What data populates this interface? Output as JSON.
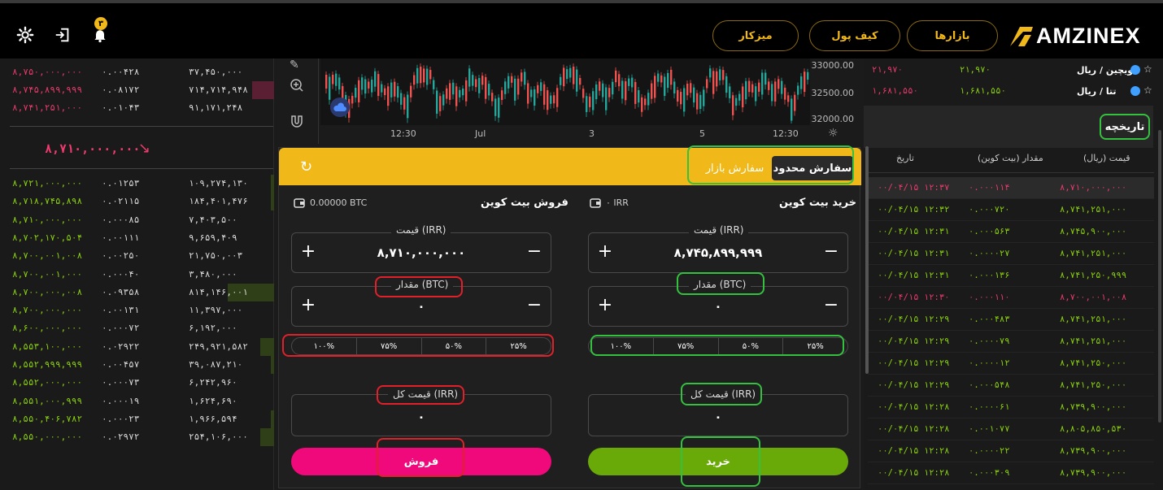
{
  "header": {
    "logo_text": "AMZINEX",
    "nav": [
      "میزکار",
      "کیف پول",
      "بازارها"
    ],
    "notification_count": "۳"
  },
  "orderbook": {
    "asks": [
      {
        "price": "۸,۷۵۰,۰۰۰,۰۰۰",
        "amount": "۰.۰۰۴۲۸",
        "total": "۳۷,۴۵۰,۰۰۰",
        "depth": 0
      },
      {
        "price": "۸,۷۴۵,۸۹۹,۹۹۹",
        "amount": "۰.۰۸۱۷۲",
        "total": "۷۱۴,۷۱۴,۹۴۸",
        "depth": 0.08
      },
      {
        "price": "۸,۷۴۱,۲۵۱,۰۰۰",
        "amount": "۰.۰۱۰۴۳",
        "total": "۹۱,۱۷۱,۲۴۸",
        "depth": 0
      }
    ],
    "mid_price": "۸,۷۱۰,۰۰۰,۰۰۰",
    "bids": [
      {
        "price": "۸,۷۲۱,۰۰۰,۰۰۰",
        "amount": "۰.۰۱۲۵۳",
        "total": "۱۰۹,۲۷۴,۱۳۰",
        "depth": 0.01
      },
      {
        "price": "۸,۷۱۸,۷۴۵,۸۹۸",
        "amount": "۰.۰۲۱۱۵",
        "total": "۱۸۴,۴۰۱,۴۷۶",
        "depth": 0.01
      },
      {
        "price": "۸,۷۱۰,۰۰۰,۰۰۰",
        "amount": "۰.۰۰۰۸۵",
        "total": "۷,۴۰۳,۵۰۰",
        "depth": 0
      },
      {
        "price": "۸,۷۰۲,۱۷۰,۵۰۴",
        "amount": "۰.۰۰۱۱۱",
        "total": "۹,۶۵۹,۴۰۹",
        "depth": 0
      },
      {
        "price": "۸,۷۰۰,۰۰۱,۰۰۸",
        "amount": "۰.۰۰۲۵۰",
        "total": "۲۱,۷۵۰,۰۰۳",
        "depth": 0
      },
      {
        "price": "۸,۷۰۰,۰۰۱,۰۰۰",
        "amount": "۰.۰۰۰۴۰",
        "total": "۳,۴۸۰,۰۰۰",
        "depth": 0
      },
      {
        "price": "۸,۷۰۰,۰۰۰,۰۰۸",
        "amount": "۰.۰۹۳۵۸",
        "total": "۸۱۴,۱۴۶,۰۰۱",
        "depth": 0.17
      },
      {
        "price": "۸,۷۰۰,۰۰۰,۰۰۰",
        "amount": "۰.۰۰۱۳۱",
        "total": "۱۱,۳۹۷,۰۰۰",
        "depth": 0
      },
      {
        "price": "۸,۶۰۰,۰۰۰,۰۰۰",
        "amount": "۰.۰۰۰۷۲",
        "total": "۶,۱۹۲,۰۰۰",
        "depth": 0
      },
      {
        "price": "۸,۵۵۳,۱۰۰,۰۰۰",
        "amount": "۰.۰۲۹۲۲",
        "total": "۲۴۹,۹۲۱,۵۸۲",
        "depth": 0.05
      },
      {
        "price": "۸,۵۵۲,۹۹۹,۹۹۹",
        "amount": "۰.۰۰۴۵۷",
        "total": "۳۹,۰۸۷,۲۱۰",
        "depth": 0.01
      },
      {
        "price": "۸,۵۵۲,۰۰۰,۰۰۰",
        "amount": "۰.۰۰۰۷۳",
        "total": "۶,۲۴۲,۹۶۰",
        "depth": 0
      },
      {
        "price": "۸,۵۵۱,۰۰۰,۹۹۹",
        "amount": "۰.۰۰۰۱۹",
        "total": "۱,۶۲۴,۶۹۰",
        "depth": 0
      },
      {
        "price": "۸,۵۵۰,۴۰۶,۷۸۲",
        "amount": "۰.۰۰۰۲۳",
        "total": "۱,۹۶۶,۵۹۴",
        "depth": 0.01
      },
      {
        "price": "۸,۵۵۰,۰۰۰,۰۰۰",
        "amount": "۰.۰۲۹۷۲",
        "total": "۲۵۴,۱۰۶,۰۰۰",
        "depth": 0.05
      }
    ]
  },
  "chart": {
    "y_ticks": [
      "33000.00",
      "32500.00",
      "32000.00"
    ],
    "x_ticks": [
      "12:30",
      "Jul",
      "3",
      "5",
      "12:30"
    ]
  },
  "order_panel": {
    "tab_limit": "سفارش محدود",
    "tab_market": "سفارش بازار",
    "buy": {
      "title": "خرید بیت کوین",
      "wallet_balance": "۰ IRR",
      "price_label": "قیمت (IRR)",
      "price_value": "۸,۷۴۵,۸۹۹,۹۹۹",
      "amount_label": "مقدار (BTC)",
      "amount_value": "۰",
      "percents": [
        "۲۵%",
        "۵۰%",
        "۷۵%",
        "۱۰۰%"
      ],
      "total_label": "قیمت کل (IRR)",
      "total_value": "۰",
      "button": "خرید"
    },
    "sell": {
      "title": "فروش بیت کوین",
      "wallet_balance": "0.00000 BTC",
      "price_label": "قیمت (IRR)",
      "price_value": "۸,۷۱۰,۰۰۰,۰۰۰",
      "amount_label": "مقدار (BTC)",
      "amount_value": "۰",
      "percents": [
        "۲۵%",
        "۵۰%",
        "۷۵%",
        "۱۰۰%"
      ],
      "total_label": "قیمت کل (IRR)",
      "total_value": "۰",
      "button": "فروش"
    }
  },
  "favorites": [
    {
      "name": "ویچین / ریال",
      "price": "۲۱,۹۷۰",
      "change": "۲۱,۹۷۰"
    },
    {
      "name": "تتا / ریال",
      "price": "۱,۶۸۱,۵۵۰",
      "change": "۱,۶۸۱,۵۵۰"
    }
  ],
  "history": {
    "title": "تاریخچه",
    "headers": {
      "price": "قیمت (ریال)",
      "amount": "مقدار (بیت کوین)",
      "date": "تاریخ"
    },
    "rows": [
      {
        "price": "۸,۷۱۰,۰۰۰,۰۰۰",
        "amount": "۰.۰۰۰۱۱۴",
        "date": "۰۰/۰۴/۱۵ ۱۲:۳۷",
        "side": "sell"
      },
      {
        "price": "۸,۷۴۱,۲۵۱,۰۰۰",
        "amount": "۰.۰۰۰۷۲۰",
        "date": "۰۰/۰۴/۱۵ ۱۲:۳۲",
        "side": "buy"
      },
      {
        "price": "۸,۷۴۵,۹۰۰,۰۰۰",
        "amount": "۰.۰۰۰۵۶۳",
        "date": "۰۰/۰۴/۱۵ ۱۲:۳۱",
        "side": "buy"
      },
      {
        "price": "۸,۷۴۱,۲۵۱,۰۰۰",
        "amount": "۰.۰۰۰۰۲۷",
        "date": "۰۰/۰۴/۱۵ ۱۲:۳۱",
        "side": "buy"
      },
      {
        "price": "۸,۷۴۱,۲۵۰,۹۹۹",
        "amount": "۰.۰۰۰۱۳۶",
        "date": "۰۰/۰۴/۱۵ ۱۲:۳۱",
        "side": "buy"
      },
      {
        "price": "۸,۷۰۰,۰۰۱,۰۰۸",
        "amount": "۰.۰۰۰۱۱۰",
        "date": "۰۰/۰۴/۱۵ ۱۲:۳۰",
        "side": "sell"
      },
      {
        "price": "۸,۷۴۱,۲۵۱,۰۰۰",
        "amount": "۰.۰۰۰۴۸۳",
        "date": "۰۰/۰۴/۱۵ ۱۲:۲۹",
        "side": "buy"
      },
      {
        "price": "۸,۷۴۱,۲۵۱,۰۰۰",
        "amount": "۰.۰۰۰۰۷۹",
        "date": "۰۰/۰۴/۱۵ ۱۲:۲۹",
        "side": "buy"
      },
      {
        "price": "۸,۷۴۱,۲۵۰,۰۰۰",
        "amount": "۰.۰۰۰۰۱۲",
        "date": "۰۰/۰۴/۱۵ ۱۲:۲۹",
        "side": "buy"
      },
      {
        "price": "۸,۷۴۱,۲۵۰,۰۰۰",
        "amount": "۰.۰۰۰۵۴۸",
        "date": "۰۰/۰۴/۱۵ ۱۲:۲۹",
        "side": "buy"
      },
      {
        "price": "۸,۷۳۹,۹۰۰,۰۰۰",
        "amount": "۰.۰۰۰۰۶۱",
        "date": "۰۰/۰۴/۱۵ ۱۲:۲۸",
        "side": "buy"
      },
      {
        "price": "۸,۸۰۵,۸۵۰,۵۳۰",
        "amount": "۰.۰۰۱۰۷۷",
        "date": "۰۰/۰۴/۱۵ ۱۲:۲۸",
        "side": "buy"
      },
      {
        "price": "۸,۷۳۹,۹۰۰,۰۰۰",
        "amount": "۰.۰۰۰۰۲۲",
        "date": "۰۰/۰۴/۱۵ ۱۲:۲۸",
        "side": "buy"
      },
      {
        "price": "۸,۷۳۹,۹۰۰,۰۰۰",
        "amount": "۰.۰۰۰۳۰۹",
        "date": "۰۰/۰۴/۱۵ ۱۲:۲۸",
        "side": "buy"
      }
    ]
  },
  "colors": {
    "accent": "#f1b81a",
    "buy": "#8bd40c",
    "sell": "#ee3a6e",
    "buy_btn": "#6aaa08",
    "sell_btn": "#f0097a",
    "highlight_green": "#35c040",
    "highlight_red": "#e0202a"
  }
}
